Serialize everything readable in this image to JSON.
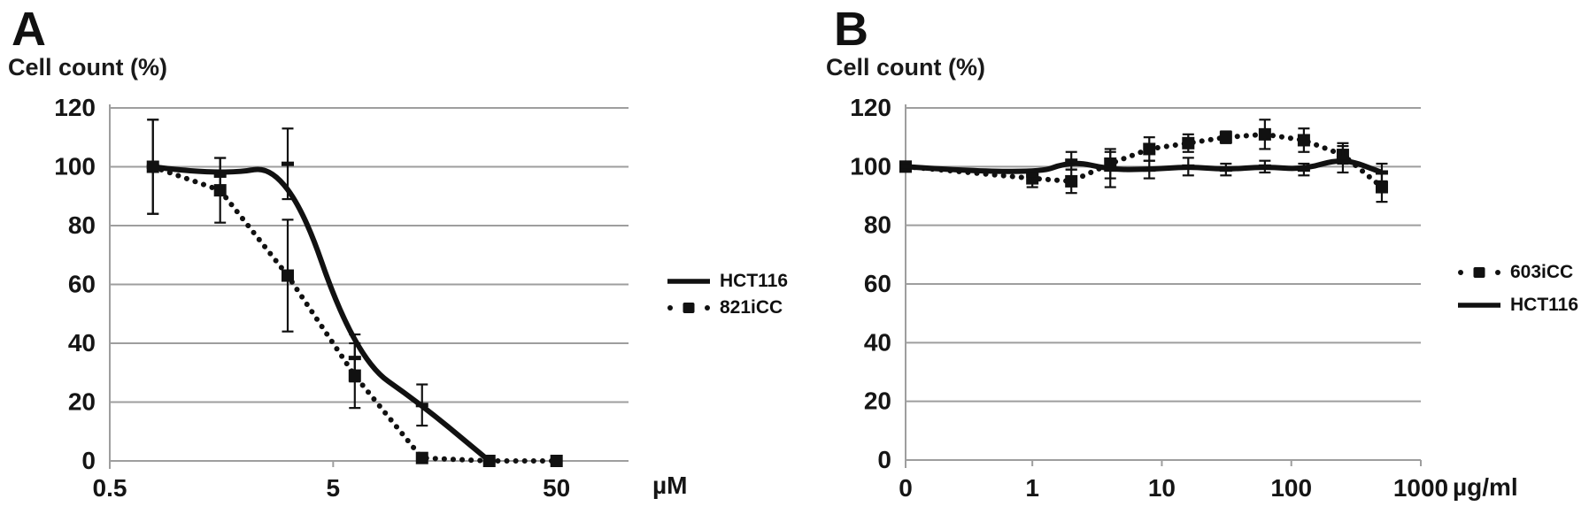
{
  "chart_data": [
    {
      "type": "line",
      "panel": "A",
      "title": "A",
      "ylabel": "Cell count (%)",
      "x_unit": "µM",
      "x_scale": "log",
      "xlim": [
        0.5,
        105
      ],
      "ylim": [
        0,
        120
      ],
      "grid": true,
      "legend_position": "right",
      "y_ticks": [
        0,
        20,
        40,
        60,
        80,
        100,
        120
      ],
      "x_ticks": [
        {
          "value": 0.5,
          "label": "0.5"
        },
        {
          "value": 5,
          "label": "5"
        },
        {
          "value": 50,
          "label": "50"
        }
      ],
      "x": [
        0.78,
        1.56,
        3.13,
        6.25,
        12.5,
        25,
        50
      ],
      "series": [
        {
          "name": "HCT116",
          "style": "solid",
          "marker": "dash",
          "values": [
            100,
            97,
            101,
            35,
            19,
            0,
            null
          ],
          "errors": [
            16,
            6,
            12,
            8,
            7,
            0,
            0
          ]
        },
        {
          "name": "821iCC",
          "style": "dotted",
          "marker": "square",
          "values": [
            100,
            92,
            63,
            29,
            1,
            0,
            0
          ],
          "errors": [
            16,
            11,
            19,
            11,
            0,
            0,
            0
          ]
        }
      ]
    },
    {
      "type": "line",
      "panel": "B",
      "title": "B",
      "ylabel": "Cell count (%)",
      "x_unit": "µg/ml",
      "x_scale": "log",
      "xlim": [
        0.105,
        1000
      ],
      "ylim": [
        0,
        120
      ],
      "grid": true,
      "legend_position": "right",
      "y_ticks": [
        0,
        20,
        40,
        60,
        80,
        100,
        120
      ],
      "x_ticks": [
        {
          "value": 0,
          "label": "0"
        },
        {
          "value": 1,
          "label": "1"
        },
        {
          "value": 10,
          "label": "10"
        },
        {
          "value": 100,
          "label": "100"
        },
        {
          "value": 1000,
          "label": "1000"
        }
      ],
      "x": [
        0,
        1,
        2,
        4,
        8,
        16,
        31.25,
        62.5,
        125,
        250,
        500
      ],
      "series": [
        {
          "name": "603iCC",
          "style": "dotted",
          "marker": "square",
          "values": [
            100,
            96,
            95,
            101,
            106,
            108,
            110,
            111,
            109,
            104,
            93
          ],
          "errors": [
            0,
            3,
            4,
            5,
            4,
            3,
            2,
            5,
            4,
            3,
            5
          ]
        },
        {
          "name": "HCT116",
          "style": "solid",
          "marker": "dash",
          "values": [
            100,
            97,
            102,
            99,
            99,
            100,
            99,
            100,
            99,
            103,
            98
          ],
          "errors": [
            0,
            2,
            3,
            6,
            3,
            3,
            2,
            2,
            2,
            5,
            3
          ]
        }
      ]
    }
  ]
}
